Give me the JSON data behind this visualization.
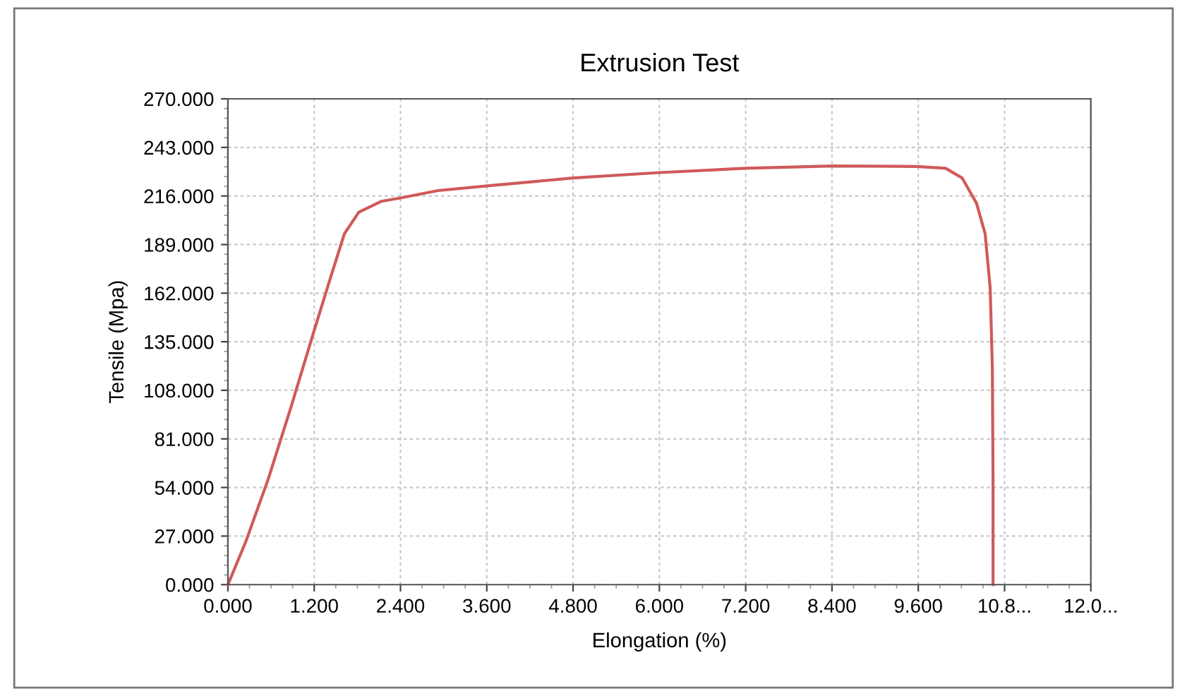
{
  "chart_data": {
    "type": "line",
    "title": "Extrusion Test",
    "xlabel": "Elongation (%)",
    "ylabel": "Tensile (Mpa)",
    "series": [
      {
        "color": "#d05a5a",
        "x": [
          0,
          0.25,
          0.56,
          0.88,
          1.19,
          1.43,
          1.62,
          1.82,
          2.13,
          2.41,
          2.92,
          3.6,
          4.8,
          6.0,
          7.2,
          8.41,
          9.58,
          9.98,
          10.21,
          10.41,
          10.53,
          10.6,
          10.63,
          10.64,
          10.64
        ],
        "values": [
          0,
          24,
          58.6,
          99,
          140,
          171,
          195,
          207,
          213,
          215,
          219,
          221.6,
          226,
          229,
          231.4,
          232.7,
          232.4,
          231.4,
          226,
          212,
          195,
          165,
          121,
          58.6,
          0
        ]
      }
    ],
    "xlim": [
      0,
      12.0
    ],
    "ylim": [
      0,
      270
    ],
    "xticks": [
      {
        "value": 0,
        "label": "0.000"
      },
      {
        "value": 1.2,
        "label": "1.200"
      },
      {
        "value": 2.4,
        "label": "2.400"
      },
      {
        "value": 3.6,
        "label": "3.600"
      },
      {
        "value": 4.8,
        "label": "4.800"
      },
      {
        "value": 6.0,
        "label": "6.000"
      },
      {
        "value": 7.2,
        "label": "7.200"
      },
      {
        "value": 8.4,
        "label": "8.400"
      },
      {
        "value": 9.6,
        "label": "9.600"
      },
      {
        "value": 10.8,
        "label": "10.8..."
      },
      {
        "value": 12.0,
        "label": "12.0..."
      }
    ],
    "yticks": [
      {
        "value": 0,
        "label": "0.000"
      },
      {
        "value": 27,
        "label": "27.000"
      },
      {
        "value": 54,
        "label": "54.000"
      },
      {
        "value": 81,
        "label": "81.000"
      },
      {
        "value": 108,
        "label": "108.000"
      },
      {
        "value": 135,
        "label": "135.000"
      },
      {
        "value": 162,
        "label": "162.000"
      },
      {
        "value": 189,
        "label": "189.000"
      },
      {
        "value": 216,
        "label": "216.000"
      },
      {
        "value": 243,
        "label": "243.000"
      },
      {
        "value": 270,
        "label": "270.000"
      }
    ],
    "grid": true,
    "legend": false,
    "marker": "none",
    "line_style": "solid"
  }
}
